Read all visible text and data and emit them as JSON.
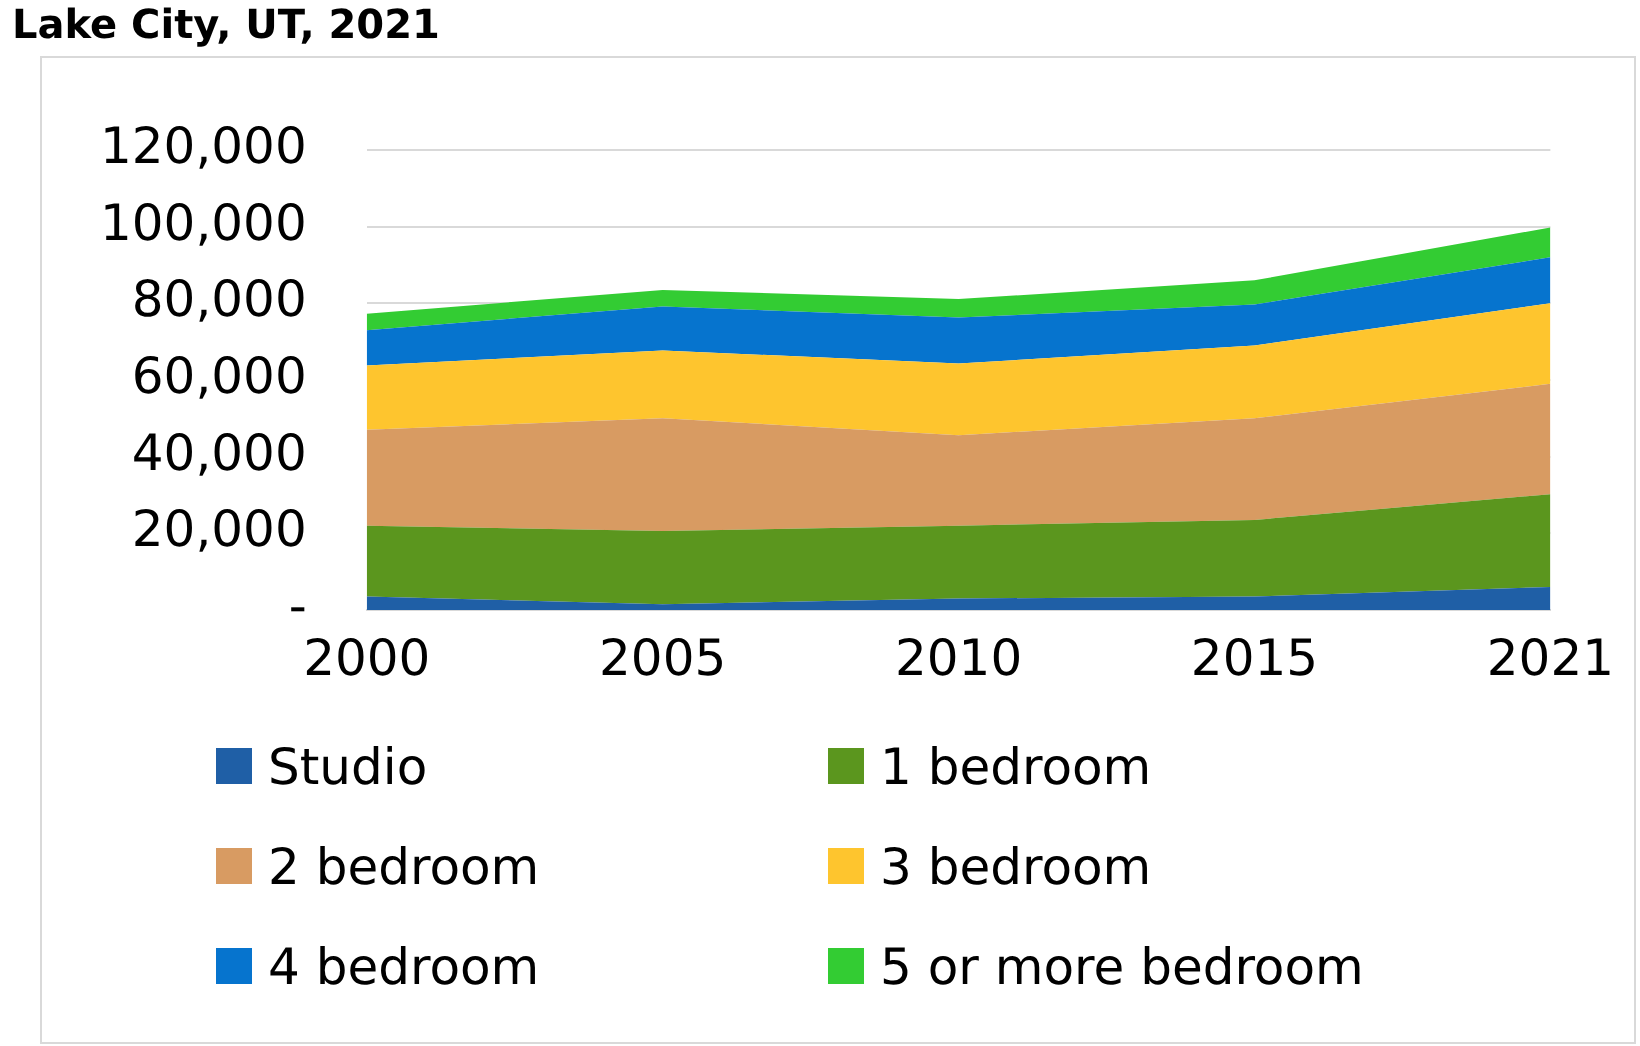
{
  "chart_data": {
    "type": "area",
    "title": "Lake City, UT, 2021",
    "stacked": true,
    "categories": [
      "2000",
      "2005",
      "2010",
      "2015",
      "2021"
    ],
    "series": [
      {
        "name": "Studio",
        "color": "#1f5fa6",
        "values": [
          3500,
          1500,
          3000,
          3500,
          6000
        ]
      },
      {
        "name": "1 bedroom",
        "color": "#5b961e",
        "values": [
          18500,
          19100,
          19000,
          20000,
          24200
        ]
      },
      {
        "name": "2 bedroom",
        "color": "#d89b62",
        "values": [
          25000,
          29400,
          23600,
          26500,
          28800
        ]
      },
      {
        "name": "3 bedroom",
        "color": "#fec52e",
        "values": [
          16800,
          17700,
          18700,
          19000,
          21000
        ]
      },
      {
        "name": "4 bedroom",
        "color": "#0674ce",
        "values": [
          9200,
          11500,
          12000,
          10700,
          12000
        ]
      },
      {
        "name": "5 or more bedroom",
        "color": "#33cc33",
        "values": [
          4300,
          4300,
          4800,
          6300,
          7800
        ]
      }
    ],
    "ylim": [
      0,
      120000
    ],
    "yticks": [
      {
        "value": 0,
        "label": "-"
      },
      {
        "value": 20000,
        "label": "20,000"
      },
      {
        "value": 40000,
        "label": "40,000"
      },
      {
        "value": 60000,
        "label": "60,000"
      },
      {
        "value": 80000,
        "label": "80,000"
      },
      {
        "value": 100000,
        "label": "100,000"
      },
      {
        "value": 120000,
        "label": "120,000"
      }
    ],
    "grid": "y",
    "legend": "bottom"
  }
}
